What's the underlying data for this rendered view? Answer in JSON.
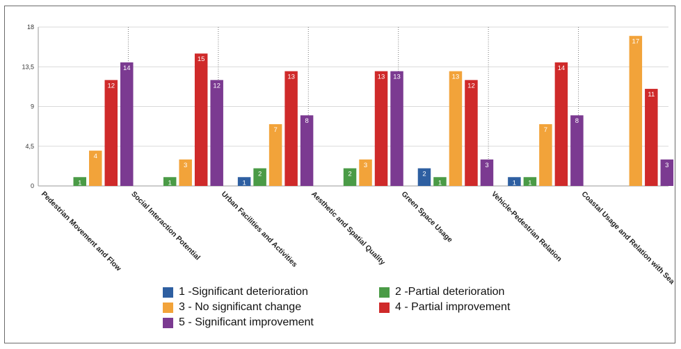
{
  "chart_data": {
    "type": "bar",
    "title": "",
    "xlabel": "",
    "ylabel": "",
    "ylim": [
      0,
      18
    ],
    "y_ticks": [
      "0",
      "4,5",
      "9",
      "13,5",
      "18"
    ],
    "grid": "horizontal, with dotted vertical category separators",
    "legend_position": "bottom",
    "categories": [
      "Pedestrian Movement and Flow",
      "Social Interaction Potential",
      "Urban Facilities and Activities",
      "Aesthetic and Spatial Quality",
      "Green Space Usage",
      "Vehicle-Pedestrian Relation",
      "Coastal Usage and Relation with Sea"
    ],
    "series": [
      {
        "name": "1 -Significant deterioration",
        "color": "#2e5fa1",
        "values": [
          null,
          null,
          1,
          null,
          2,
          1,
          null
        ]
      },
      {
        "name": "2 -Partial deterioration",
        "color": "#4a9b46",
        "values": [
          1,
          1,
          2,
          2,
          1,
          1,
          null
        ]
      },
      {
        "name": "3 - No significant change",
        "color": "#f2a33a",
        "values": [
          4,
          3,
          7,
          3,
          13,
          7,
          17
        ]
      },
      {
        "name": "4 - Partial improvement",
        "color": "#cf2a2a",
        "values": [
          12,
          15,
          13,
          13,
          12,
          14,
          11
        ]
      },
      {
        "name": "5 - Significant improvement",
        "color": "#7b3a91",
        "values": [
          14,
          12,
          8,
          13,
          3,
          8,
          3
        ]
      }
    ]
  }
}
